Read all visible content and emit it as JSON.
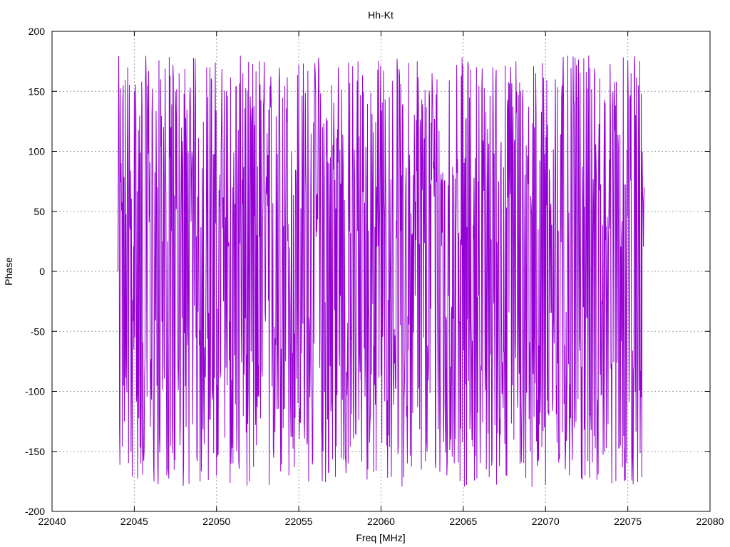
{
  "chart_data": {
    "type": "line",
    "title": "Hh-Kt",
    "xlabel": "Freq [MHz]",
    "ylabel": "Phase",
    "xlim": [
      22040,
      22080
    ],
    "ylim": [
      -200,
      200
    ],
    "xticks": [
      22040,
      22045,
      22050,
      22055,
      22060,
      22065,
      22070,
      22075,
      22080
    ],
    "yticks": [
      -200,
      -150,
      -100,
      -50,
      0,
      50,
      100,
      150,
      200
    ],
    "grid": true,
    "legend": "none",
    "series": [
      {
        "color": "#9400d3",
        "x_range": [
          22044.0,
          22076.0
        ],
        "y_range": [
          -180,
          180
        ],
        "pattern": "phase wrapping noise, dense oscillation",
        "sample_points": [
          [
            22044.0,
            0
          ],
          [
            22044.1,
            -130
          ],
          [
            22044.2,
            90
          ],
          [
            22044.3,
            140
          ],
          [
            22044.4,
            -125
          ],
          [
            22044.6,
            170
          ],
          [
            22044.8,
            -150
          ],
          [
            22045.0,
            150
          ],
          [
            22045.4,
            -160
          ],
          [
            22045.8,
            155
          ],
          [
            22046.2,
            -175
          ],
          [
            22046.6,
            160
          ],
          [
            22047.0,
            -165
          ],
          [
            22047.5,
            150
          ],
          [
            22048.0,
            -160
          ],
          [
            22048.6,
            178
          ],
          [
            22049.0,
            -175
          ],
          [
            22049.6,
            170
          ],
          [
            22050.0,
            -170
          ],
          [
            22050.6,
            150
          ],
          [
            22051.0,
            -160
          ],
          [
            22051.6,
            165
          ],
          [
            22052.0,
            -175
          ],
          [
            22052.6,
            175
          ],
          [
            22053.2,
            -178
          ],
          [
            22053.8,
            160
          ],
          [
            22054.4,
            -170
          ],
          [
            22055.0,
            172
          ],
          [
            22055.6,
            -175
          ],
          [
            22056.2,
            178
          ],
          [
            22056.8,
            -168
          ],
          [
            22057.4,
            170
          ],
          [
            22058.0,
            -160
          ],
          [
            22058.6,
            175
          ],
          [
            22059.2,
            -165
          ],
          [
            22059.8,
            168
          ],
          [
            22060.4,
            -172
          ],
          [
            22061.0,
            165
          ],
          [
            22061.6,
            -160
          ],
          [
            22062.2,
            175
          ],
          [
            22062.8,
            -150
          ],
          [
            22063.4,
            160
          ],
          [
            22064.0,
            -170
          ],
          [
            22064.6,
            172
          ],
          [
            22065.2,
            -178
          ],
          [
            22065.8,
            170
          ],
          [
            22066.4,
            -165
          ],
          [
            22067.0,
            168
          ],
          [
            22067.6,
            -170
          ],
          [
            22068.2,
            175
          ],
          [
            22068.8,
            -172
          ],
          [
            22069.4,
            165
          ],
          [
            22070.0,
            -178
          ],
          [
            22070.6,
            160
          ],
          [
            22071.2,
            -165
          ],
          [
            22071.8,
            178
          ],
          [
            22072.4,
            -170
          ],
          [
            22073.0,
            162
          ],
          [
            22073.6,
            -150
          ],
          [
            22074.2,
            158
          ],
          [
            22074.8,
            -175
          ],
          [
            22075.4,
            170
          ],
          [
            22075.8,
            -105
          ],
          [
            22076.0,
            70
          ]
        ]
      }
    ]
  }
}
